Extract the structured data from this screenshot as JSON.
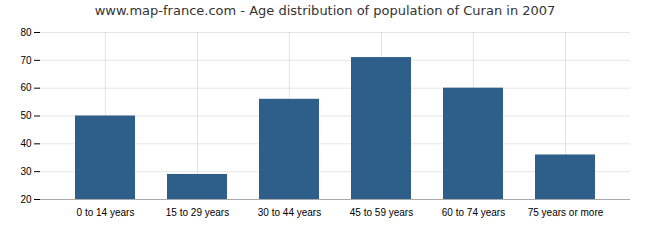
{
  "chart_data": {
    "type": "bar",
    "title": "www.map-france.com - Age distribution of population of Curan in 2007",
    "categories": [
      "0 to 14 years",
      "15 to 29 years",
      "30 to 44 years",
      "45 to 59 years",
      "60 to 74 years",
      "75 years or more"
    ],
    "values": [
      50,
      29,
      56,
      71,
      60,
      36
    ],
    "color": "#2e5f8a",
    "ylim": [
      20,
      80
    ],
    "yticks": [
      20,
      30,
      40,
      50,
      60,
      70,
      80
    ],
    "grid": true
  }
}
